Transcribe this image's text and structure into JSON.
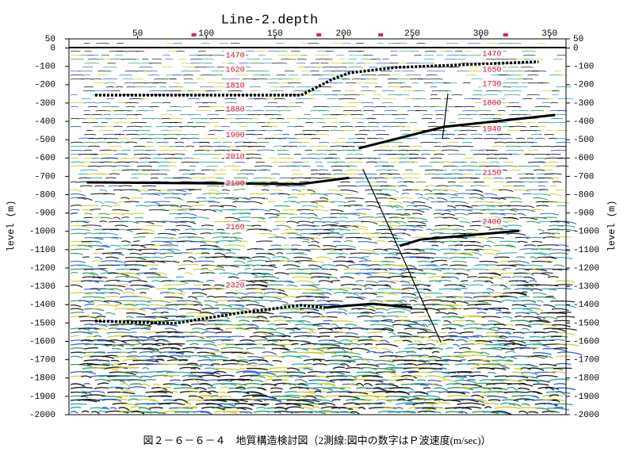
{
  "chart_data": {
    "type": "section",
    "title": "Line-2.depth",
    "caption": "図２－６－６－４　地質構造検討図（2測線:図中の数字はＰ波速度(m/sec)）",
    "ylabel": "level (m)",
    "xlim": [
      0,
      362
    ],
    "xticks": [
      50,
      100,
      150,
      200,
      250,
      300,
      350
    ],
    "ylim": [
      -2000,
      50
    ],
    "yticks": [
      50,
      0,
      -100,
      -200,
      -300,
      -400,
      -500,
      -600,
      -700,
      -800,
      -900,
      -1000,
      -1100,
      -1200,
      -1300,
      -1400,
      -1500,
      -1600,
      -1700,
      -1800,
      -1900,
      -2000
    ],
    "markers": [
      91,
      182,
      227,
      318
    ],
    "marker_color": "#e0205a",
    "velocity_color": "#d0103a",
    "velocities": [
      {
        "x": 121,
        "y": -41,
        "value": 1470
      },
      {
        "x": 121,
        "y": -118,
        "value": 1620
      },
      {
        "x": 121,
        "y": -205,
        "value": 1810
      },
      {
        "x": 121,
        "y": -335,
        "value": 1880
      },
      {
        "x": 121,
        "y": -474,
        "value": 1900
      },
      {
        "x": 121,
        "y": -591,
        "value": 2010
      },
      {
        "x": 121,
        "y": -738,
        "value": 2100
      },
      {
        "x": 121,
        "y": -976,
        "value": 2160
      },
      {
        "x": 121,
        "y": -1295,
        "value": 2320
      },
      {
        "x": 308,
        "y": -32,
        "value": 1470
      },
      {
        "x": 308,
        "y": -118,
        "value": 1650
      },
      {
        "x": 308,
        "y": -196,
        "value": 1730
      },
      {
        "x": 308,
        "y": -300,
        "value": 1800
      },
      {
        "x": 308,
        "y": -443,
        "value": 1940
      },
      {
        "x": 308,
        "y": -681,
        "value": 2150
      },
      {
        "x": 308,
        "y": -949,
        "value": 2400
      }
    ],
    "horizons": [
      {
        "style": "dotted",
        "x": [
          19,
          169,
          192,
          204,
          238,
          342
        ],
        "y": [
          -257,
          -257,
          -170,
          -136,
          -106,
          -75
        ]
      },
      {
        "style": "solid",
        "x": [
          13,
          169,
          204
        ],
        "y": [
          -733,
          -742,
          -708
        ]
      },
      {
        "style": "solid",
        "x": [
          211,
          273,
          354
        ],
        "y": [
          -547,
          -430,
          -365
        ]
      },
      {
        "style": "solid",
        "x": [
          241,
          256,
          328
        ],
        "y": [
          -1079,
          -1045,
          -997
        ]
      },
      {
        "style": "dotted",
        "x": [
          19,
          77,
          123,
          169,
          186
        ],
        "y": [
          -1489,
          -1502,
          -1446,
          -1403,
          -1416
        ]
      },
      {
        "style": "solid",
        "x": [
          186,
          221,
          250
        ],
        "y": [
          -1416,
          -1395,
          -1416
        ]
      },
      {
        "style": "thin",
        "x": [
          214,
          271
        ],
        "y": [
          -660,
          -1607
        ]
      },
      {
        "style": "thin",
        "x": [
          276,
          272
        ],
        "y": [
          -249,
          -496
        ]
      }
    ]
  }
}
